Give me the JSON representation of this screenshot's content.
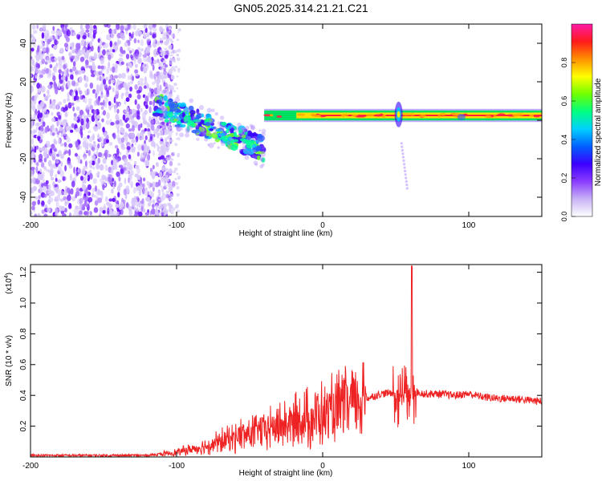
{
  "page": {
    "title": "GN05.2025.314.21.21.C21"
  },
  "colors": {
    "cbar": [
      "#ffffff",
      "#c8b2f5",
      "#8a3dff",
      "#3c00ff",
      "#0060ff",
      "#00d0ff",
      "#00ff80",
      "#70ff00",
      "#ffff00",
      "#ff9000",
      "#ff1a1a",
      "#ff1aa8"
    ],
    "snr_line": "#ee2222",
    "spectrogram_noise": "#7a2cff",
    "spectrogram_band": "#ff2233"
  },
  "chart_data": [
    {
      "type": "heatmap",
      "title": "",
      "xlabel": "Height of straight line (km)",
      "ylabel": "Frequency (Hz)",
      "xlim": [
        -200,
        150
      ],
      "ylim": [
        -50,
        50
      ],
      "x_ticks": [
        -200,
        -100,
        0,
        100
      ],
      "y_ticks": [
        -40,
        -20,
        0,
        20,
        40
      ],
      "grid": false,
      "colorbar": {
        "label": "Normalized spectral amplitude",
        "range": [
          0,
          1
        ],
        "ticks": [
          0.0,
          0.2,
          0.4,
          0.6,
          0.8
        ]
      },
      "features": {
        "noise_region_x": [
          -200,
          -110
        ],
        "streak_x": [
          -115,
          -40
        ],
        "streak_y": [
          8,
          -15
        ],
        "band_x": [
          -40,
          150
        ],
        "band_y": [
          1,
          4
        ],
        "burst_x": 52,
        "burst_y": [
          -35,
          18
        ]
      }
    },
    {
      "type": "line",
      "title": "",
      "xlabel": "Height of straight line (km)",
      "ylabel": "SNR (10 * v/v)",
      "y_multiplier": "(x10",
      "y_multiplier_exp": "4",
      "y_multiplier_close": ")",
      "xlim": [
        -200,
        150
      ],
      "ylim": [
        0,
        1.25
      ],
      "x_ticks": [
        -200,
        -100,
        0,
        100
      ],
      "y_ticks": [
        0.2,
        0.4,
        0.6,
        0.8,
        1.0,
        1.2
      ],
      "grid": false,
      "series": [
        {
          "x": [
            -200,
            -150,
            -120,
            -100,
            -90,
            -80,
            -70,
            -60,
            -50,
            -40,
            -30,
            -20,
            -10,
            0,
            10,
            20,
            30,
            40,
            50,
            55,
            58,
            60,
            62,
            65,
            70,
            80,
            90,
            100,
            110,
            120,
            130,
            140,
            150
          ],
          "y": [
            0.01,
            0.01,
            0.01,
            0.03,
            0.05,
            0.07,
            0.1,
            0.13,
            0.15,
            0.18,
            0.2,
            0.22,
            0.25,
            0.27,
            0.3,
            0.35,
            0.38,
            0.41,
            0.42,
            0.42,
            0.45,
            1.24,
            0.43,
            0.42,
            0.41,
            0.41,
            0.4,
            0.41,
            0.39,
            0.38,
            0.38,
            0.37,
            0.36
          ]
        }
      ]
    }
  ]
}
